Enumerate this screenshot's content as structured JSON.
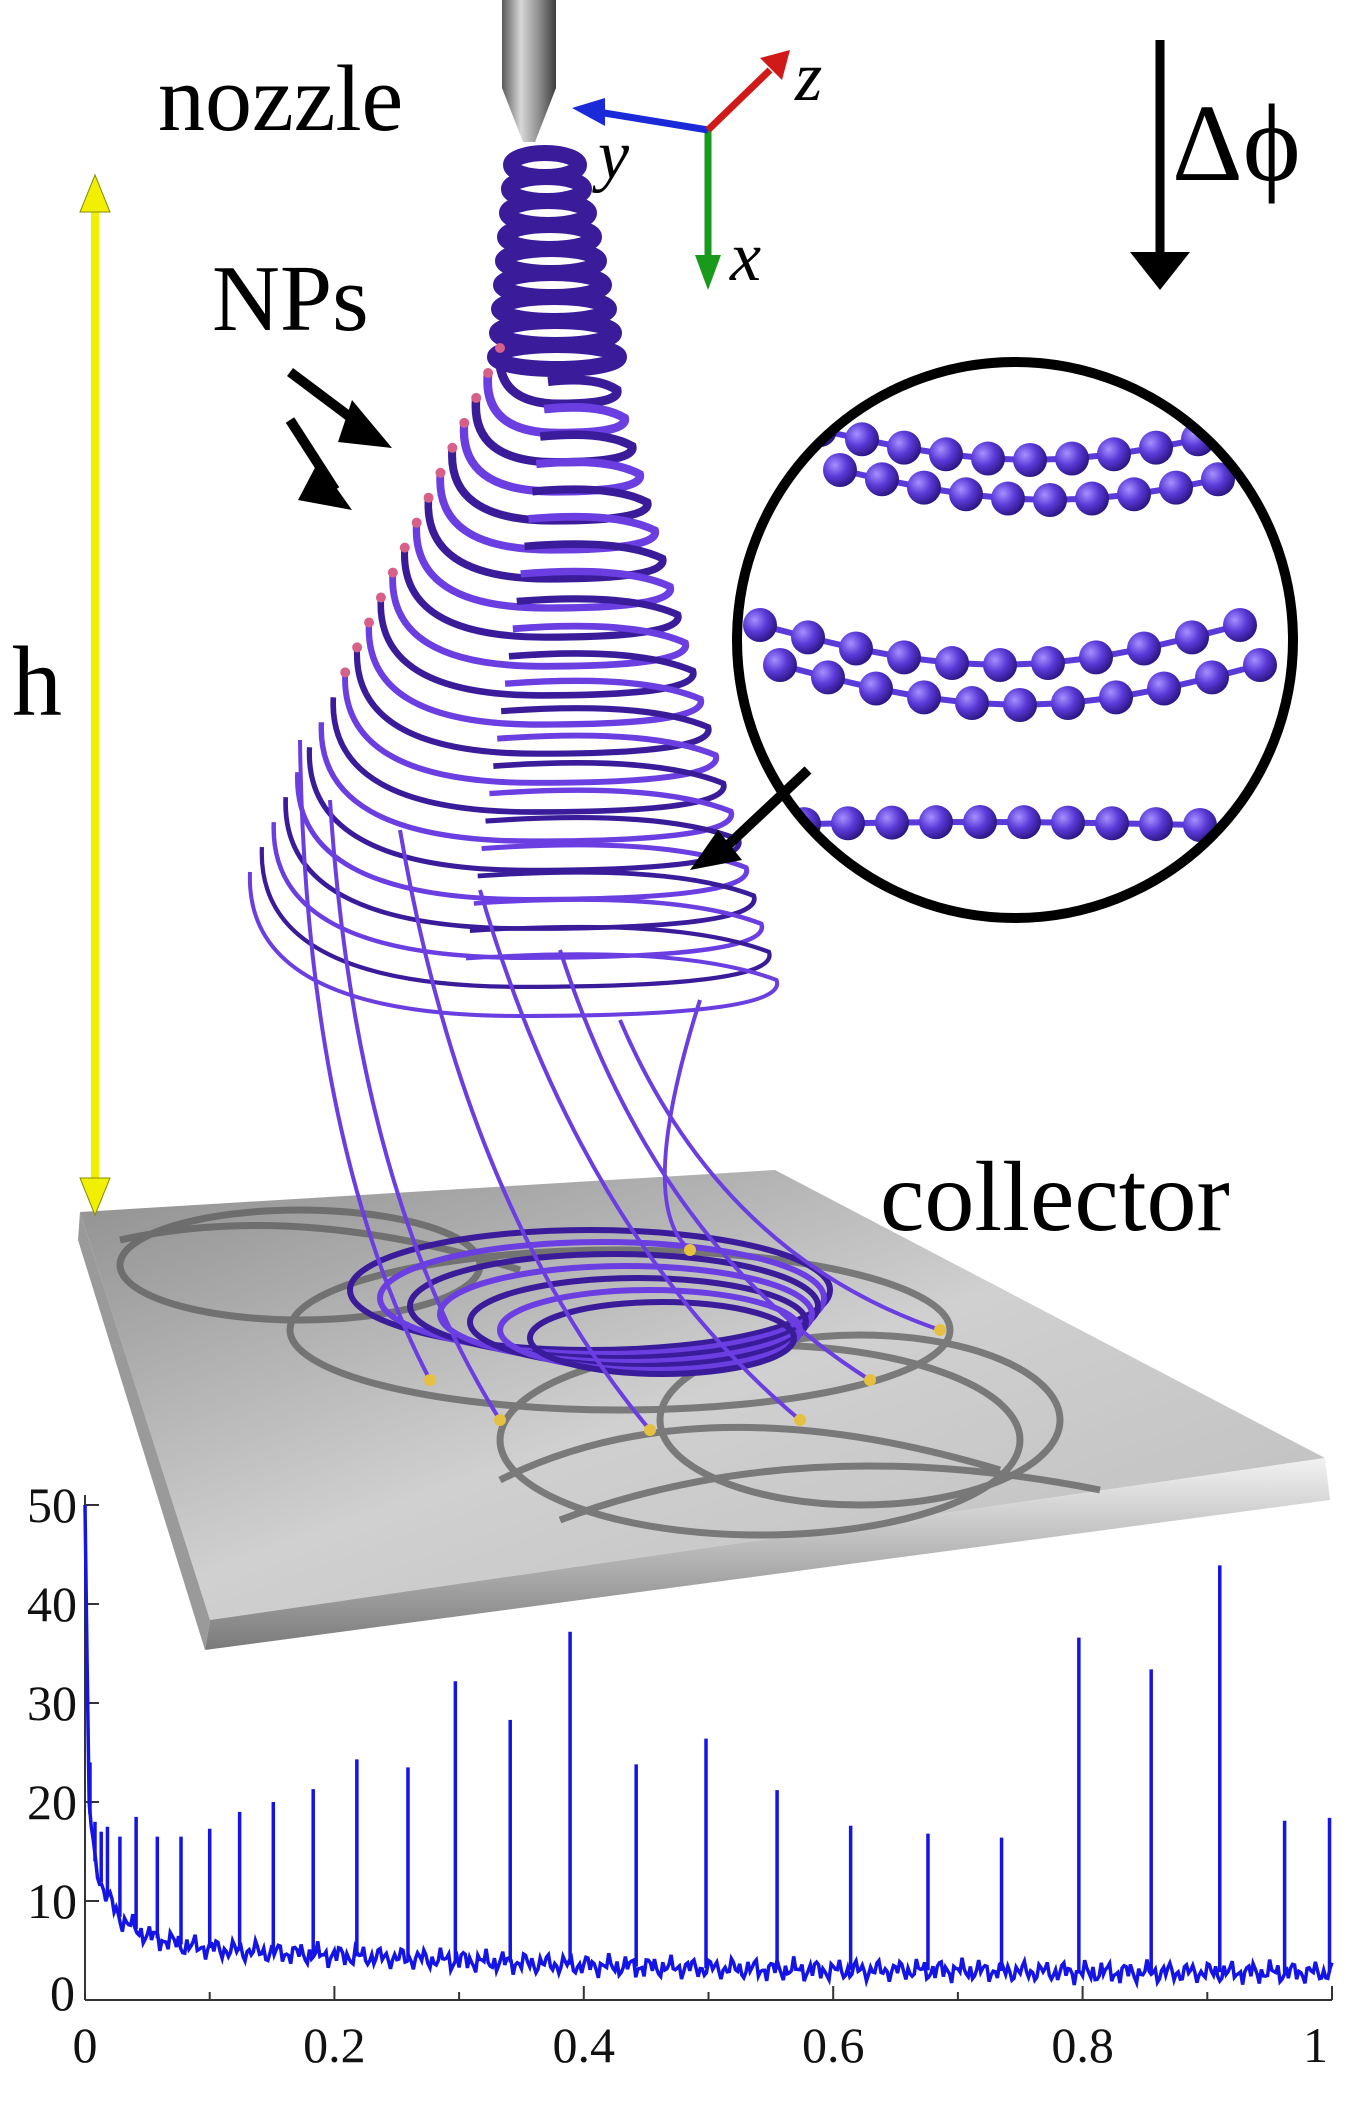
{
  "labels": {
    "nozzle": "nozzle",
    "nps": "NPs",
    "h": "h",
    "collector": "collector",
    "delta_phi": "Δϕ",
    "axis_x": "x",
    "axis_y": "y",
    "axis_z": "z"
  },
  "colors": {
    "jet": "#6a3ee0",
    "jet_dark": "#3a1c9a",
    "np_tip": "#d6608a",
    "bead": "#5a3ad8",
    "spectrum": "#1414e6",
    "h_arrow": "#f0f000",
    "axis_x": "#1a9a1a",
    "axis_y": "#1a2ad8",
    "axis_z": "#d01a1a",
    "collector": "#c8c8c8"
  },
  "chart_data": {
    "type": "line",
    "title": "",
    "xlabel": "",
    "ylabel": "",
    "xlim": [
      0,
      1
    ],
    "ylim": [
      0,
      50
    ],
    "x_ticks": [
      "0",
      "0.2",
      "0.4",
      "0.6",
      "0.8",
      "1"
    ],
    "y_ticks": [
      "0",
      "10",
      "20",
      "30",
      "40",
      "50"
    ],
    "baseline": [
      [
        0.0,
        50
      ],
      [
        0.003,
        20
      ],
      [
        0.008,
        14
      ],
      [
        0.015,
        11
      ],
      [
        0.03,
        8
      ],
      [
        0.05,
        6.5
      ],
      [
        0.08,
        5.5
      ],
      [
        0.12,
        5
      ],
      [
        0.2,
        4.5
      ],
      [
        0.3,
        4
      ],
      [
        0.4,
        3.5
      ],
      [
        0.5,
        3.2
      ],
      [
        0.6,
        3
      ],
      [
        0.7,
        3
      ],
      [
        0.8,
        2.8
      ],
      [
        0.9,
        2.8
      ],
      [
        1.0,
        2.8
      ]
    ],
    "peaks": [
      {
        "x": 0.004,
        "y": 24
      },
      {
        "x": 0.008,
        "y": 18
      },
      {
        "x": 0.013,
        "y": 17
      },
      {
        "x": 0.018,
        "y": 17.5
      },
      {
        "x": 0.028,
        "y": 16.5
      },
      {
        "x": 0.041,
        "y": 18.5
      },
      {
        "x": 0.058,
        "y": 16.5
      },
      {
        "x": 0.077,
        "y": 16.5
      },
      {
        "x": 0.1,
        "y": 17.3
      },
      {
        "x": 0.124,
        "y": 19
      },
      {
        "x": 0.151,
        "y": 20
      },
      {
        "x": 0.183,
        "y": 21.3
      },
      {
        "x": 0.218,
        "y": 24.3
      },
      {
        "x": 0.259,
        "y": 23.5
      },
      {
        "x": 0.297,
        "y": 32.2
      },
      {
        "x": 0.341,
        "y": 28.3
      },
      {
        "x": 0.389,
        "y": 37.2
      },
      {
        "x": 0.442,
        "y": 23.8
      },
      {
        "x": 0.498,
        "y": 26.4
      },
      {
        "x": 0.555,
        "y": 21.2
      },
      {
        "x": 0.614,
        "y": 17.6
      },
      {
        "x": 0.676,
        "y": 16.8
      },
      {
        "x": 0.735,
        "y": 16.4
      },
      {
        "x": 0.797,
        "y": 36.6
      },
      {
        "x": 0.855,
        "y": 33.4
      },
      {
        "x": 0.91,
        "y": 43.9
      },
      {
        "x": 0.962,
        "y": 18.1
      },
      {
        "x": 0.998,
        "y": 18.4
      }
    ]
  }
}
